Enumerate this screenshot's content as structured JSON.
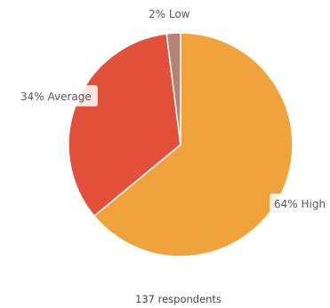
{
  "chart_data": {
    "type": "pie",
    "slices": [
      {
        "label": "High",
        "value": 64,
        "display": "64% High",
        "color": "#f0a23c"
      },
      {
        "label": "Average",
        "value": 34,
        "display": "34% Average",
        "color": "#e3503a"
      },
      {
        "label": "Low",
        "value": 2,
        "display": "2% Low",
        "color": "#b38474"
      }
    ],
    "footer": "137 respondents",
    "start_angle": "12 o'clock",
    "direction": "clockwise",
    "legend": "none"
  }
}
